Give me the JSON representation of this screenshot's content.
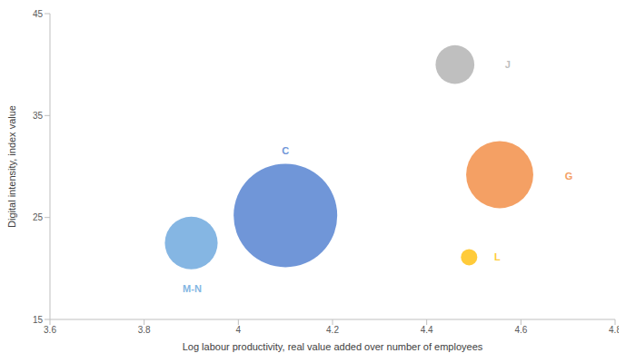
{
  "chart_data": {
    "type": "bubble",
    "x_label": "Log labour productivity, real value added over number of employees",
    "y_label": "Digital intensity, index value",
    "xlim": [
      3.6,
      4.8
    ],
    "xticks": [
      3.6,
      3.8,
      4,
      4.2,
      4.4,
      4.6,
      4.8
    ],
    "ylim": [
      15,
      45
    ],
    "yticks": [
      15,
      25,
      35,
      45
    ],
    "grid": false,
    "points": [
      {
        "label": "C",
        "x": 4.1,
        "y": 25.2,
        "size": 100,
        "color": "#7096d8"
      },
      {
        "label": "M-N",
        "x": 3.9,
        "y": 22.5,
        "size": 26,
        "color": "#85b6e3"
      },
      {
        "label": "J",
        "x": 4.46,
        "y": 40,
        "size": 14,
        "color": "#bfbfbf"
      },
      {
        "label": "G",
        "x": 4.555,
        "y": 29.2,
        "size": 42,
        "color": "#f4a064"
      },
      {
        "label": "L",
        "x": 4.49,
        "y": 21.1,
        "size": 2.5,
        "color": "#ffcb3a"
      }
    ]
  }
}
